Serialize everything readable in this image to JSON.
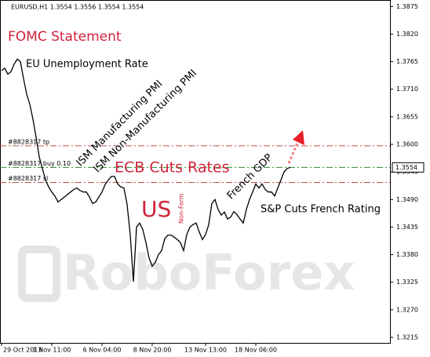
{
  "chart_data": {
    "type": "line",
    "header": "EURUSD,H1  1.3554 1.3556 1.3554 1.3554",
    "categories": [
      "29 Oct 2013",
      null,
      null,
      null,
      null,
      null,
      null,
      null,
      null,
      null,
      null,
      null,
      null,
      null,
      null,
      null,
      "1 Nov 11:00",
      null,
      null,
      null,
      null,
      null,
      null,
      null,
      null,
      null,
      null,
      null,
      null,
      null,
      null,
      null,
      "6 Nov 04:00",
      null,
      null,
      null,
      null,
      null,
      null,
      null,
      null,
      null,
      null,
      null,
      null,
      null,
      null,
      null,
      "8 Nov 20:00",
      null,
      null,
      null,
      null,
      null,
      null,
      null,
      null,
      null,
      null,
      null,
      null,
      null,
      null,
      null,
      null,
      "13 Nov 13:00",
      null,
      null,
      null,
      null,
      null,
      null,
      null,
      null,
      null,
      null,
      null,
      null,
      null,
      null,
      null,
      "18 Nov 06:00",
      null,
      null,
      null,
      null,
      null,
      null,
      null,
      null,
      null,
      null,
      null
    ],
    "series": [
      {
        "color": "#000000",
        "values": [
          1.3747,
          1.3752,
          1.374,
          1.3745,
          1.376,
          1.377,
          1.3765,
          1.3731,
          1.37,
          1.368,
          1.365,
          1.3614,
          1.3575,
          1.3552,
          1.3529,
          1.3515,
          1.3505,
          1.3497,
          1.3485,
          1.349,
          1.3495,
          1.35,
          1.3505,
          1.351,
          1.3513,
          1.3508,
          1.3505,
          1.3505,
          1.3495,
          1.3482,
          1.3485,
          1.3495,
          1.3505,
          1.352,
          1.3529,
          1.3536,
          1.3536,
          1.3521,
          1.3515,
          1.3513,
          1.348,
          1.3419,
          1.3326,
          1.3435,
          1.3443,
          1.343,
          1.3404,
          1.3373,
          1.3357,
          1.3365,
          1.338,
          1.3388,
          1.3412,
          1.3419,
          1.3419,
          1.3415,
          1.341,
          1.3404,
          1.3388,
          1.342,
          1.3435,
          1.344,
          1.3443,
          1.3425,
          1.341,
          1.342,
          1.344,
          1.3482,
          1.349,
          1.347,
          1.3459,
          1.3465,
          1.3451,
          1.3455,
          1.3466,
          1.346,
          1.3451,
          1.3443,
          1.347,
          1.349,
          1.3505,
          1.3521,
          1.3513,
          1.3521,
          1.351,
          1.3505,
          1.3505,
          1.3497,
          1.3513,
          1.3529,
          1.3545,
          1.3552,
          1.3554
        ]
      }
    ],
    "ylim": [
      1.3204,
      1.3888
    ],
    "yticks": [
      1.3875,
      {
        "value": 1.382,
        "label": "1.3820"
      },
      1.3765,
      {
        "value": 1.371,
        "label": "1.3710"
      },
      1.3655,
      {
        "value": 1.36,
        "label": "1.3600"
      },
      1.3545,
      {
        "value": 1.349,
        "label": "1.3490"
      },
      1.3435,
      {
        "value": 1.338,
        "label": "1.3380"
      },
      1.3325,
      {
        "value": 1.327,
        "label": "1.3270"
      },
      1.3215
    ],
    "levels": [
      {
        "label": "#8828317 tp",
        "value": 1.3597,
        "color": "#c0504d"
      },
      {
        "label": "#8828317 buy 0.10",
        "value": 1.3554,
        "color": "#2e8b2e"
      },
      {
        "label": "#8828317 sl",
        "value": 1.3524,
        "color": "#c0504d"
      }
    ],
    "annotations": [
      "FOMC Statement",
      "EU Unemployment Rate",
      "ISM Manufacturing PMI",
      "ISM Non-Manufacturing PMI",
      "ECB Cuts Rates",
      "French GDP",
      "US",
      "Non-Farm",
      "S&P Cuts French Rating"
    ],
    "watermark": "RoboForex"
  }
}
